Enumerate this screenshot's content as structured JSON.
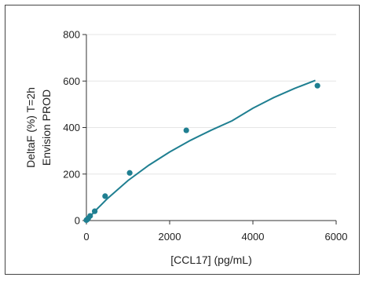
{
  "chart_data": {
    "type": "scatter",
    "xlabel": "[CCL17] (pg/mL)",
    "ylabel_lines": [
      "DeltaF (%) T=2h",
      "Envision PROD"
    ],
    "xlim": [
      0,
      6000
    ],
    "ylim": [
      0,
      800
    ],
    "x_ticks": [
      0,
      2000,
      4000,
      6000
    ],
    "y_ticks": [
      0,
      200,
      400,
      600,
      800
    ],
    "grid": "horizontal",
    "series": [
      {
        "points": [
          {
            "x": 0,
            "y": 2
          },
          {
            "x": 20,
            "y": 5
          },
          {
            "x": 45,
            "y": 10
          },
          {
            "x": 90,
            "y": 20
          },
          {
            "x": 200,
            "y": 40
          },
          {
            "x": 450,
            "y": 105
          },
          {
            "x": 1040,
            "y": 205
          },
          {
            "x": 2400,
            "y": 388
          },
          {
            "x": 5550,
            "y": 580
          }
        ],
        "fit_curve": [
          {
            "x": 0,
            "y": 0
          },
          {
            "x": 250,
            "y": 49
          },
          {
            "x": 500,
            "y": 94
          },
          {
            "x": 1000,
            "y": 172
          },
          {
            "x": 1500,
            "y": 238
          },
          {
            "x": 2000,
            "y": 295
          },
          {
            "x": 2500,
            "y": 345
          },
          {
            "x": 3000,
            "y": 389
          },
          {
            "x": 3500,
            "y": 429
          },
          {
            "x": 4000,
            "y": 483
          },
          {
            "x": 4500,
            "y": 529
          },
          {
            "x": 5000,
            "y": 568
          },
          {
            "x": 5500,
            "y": 603
          }
        ]
      }
    ],
    "colors": {
      "series": "#1f7f91",
      "axis": "#333333",
      "grid": "#e6e6e6"
    }
  }
}
